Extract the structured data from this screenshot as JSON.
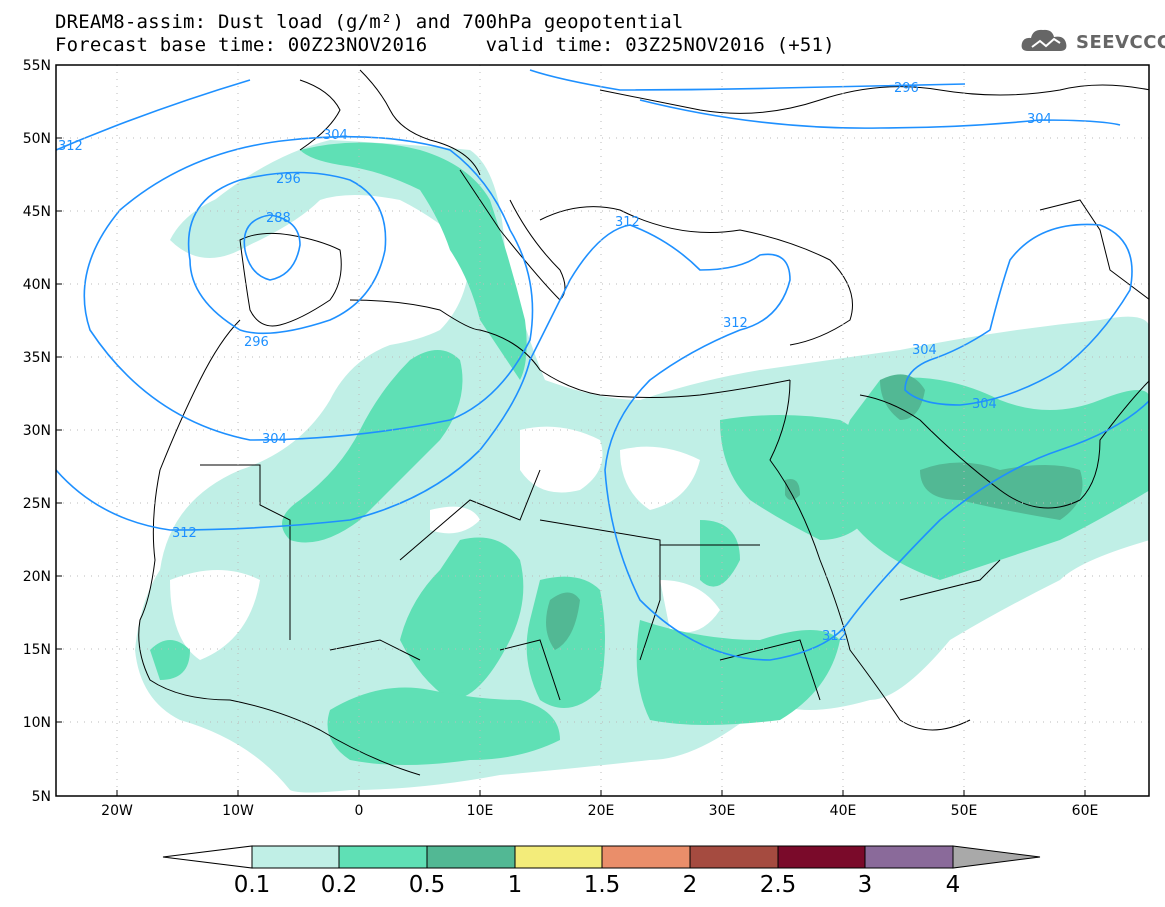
{
  "header": {
    "line1": "DREAM8-assim: Dust load (g/m²) and 700hPa geopotential",
    "line2": "Forecast base time: 00Z23NOV2016     valid time: 03Z25NOV2016 (+51)"
  },
  "logo": {
    "text": "SEEVCCC",
    "icon": "cloud-icon"
  },
  "map": {
    "lat_labels": [
      "55N",
      "50N",
      "45N",
      "40N",
      "35N",
      "30N",
      "25N",
      "20N",
      "15N",
      "10N",
      "5N"
    ],
    "lon_labels": [
      "20W",
      "10W",
      "0",
      "10E",
      "20E",
      "30E",
      "40E",
      "50E",
      "60E"
    ],
    "contour_labels": [
      "312",
      "304",
      "296",
      "288",
      "296",
      "304",
      "312",
      "312",
      "312",
      "296",
      "304",
      "304",
      "304",
      "312"
    ],
    "contour_color": "#1e90ff"
  },
  "colorbar": {
    "labels": [
      "0.1",
      "0.2",
      "0.5",
      "1",
      "1.5",
      "2",
      "2.5",
      "3",
      "4"
    ],
    "colors": [
      "#c0efe6",
      "#5fe0b5",
      "#52b894",
      "#f3ec7a",
      "#ea8e6a",
      "#a54b40",
      "#7a0a2a",
      "#8a6a9a",
      "#a9a9a9"
    ]
  }
}
